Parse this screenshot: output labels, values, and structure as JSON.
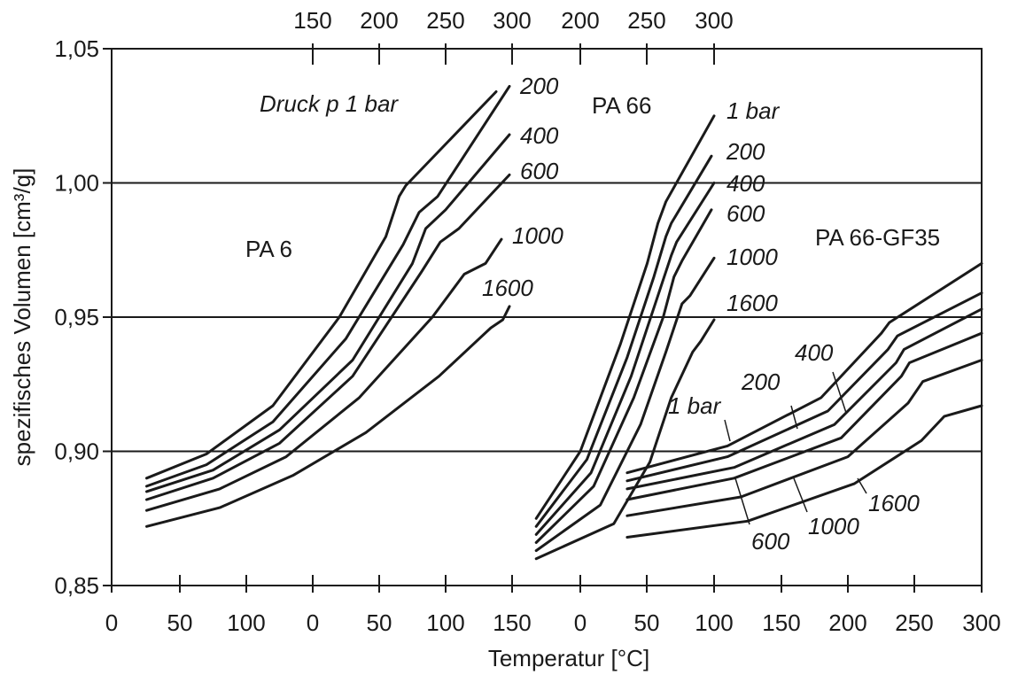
{
  "chart_data": {
    "type": "line",
    "xlabel": "Temperatur [°C]",
    "ylabel": "spezifisches Volumen [cm³/g]",
    "ylim": [
      0.85,
      1.05
    ],
    "yticks": [
      "0,85",
      "0,90",
      "0,95",
      "1,00",
      "1,05"
    ],
    "grid": "horizontal at 0,90 / 0,95 / 1,00",
    "x_axes": {
      "bottom": [
        "0",
        "50",
        "100",
        "150",
        "0",
        "50",
        "100",
        "150",
        "0",
        "50",
        "100",
        "150",
        "200",
        "250",
        "300"
      ],
      "top": [
        "150",
        "200",
        "250",
        "300",
        "200",
        "250",
        "300"
      ]
    },
    "panels": [
      {
        "name": "PA 6",
        "pressure_annotation": "Druck p 1 bar",
        "series": [
          {
            "name": "1 bar",
            "points": [
              [
                25,
                0.89
              ],
              [
                70,
                0.899
              ],
              [
                120,
                0.917
              ],
              [
                170,
                0.95
              ],
              [
                205,
                0.98
              ],
              [
                215,
                0.995
              ],
              [
                220,
                0.999
              ],
              [
                288,
                1.034
              ]
            ]
          },
          {
            "name": "200",
            "points": [
              [
                25,
                0.887
              ],
              [
                70,
                0.895
              ],
              [
                120,
                0.911
              ],
              [
                175,
                0.942
              ],
              [
                218,
                0.977
              ],
              [
                230,
                0.989
              ],
              [
                244,
                0.995
              ],
              [
                298,
                1.036
              ]
            ]
          },
          {
            "name": "400",
            "points": [
              [
                25,
                0.885
              ],
              [
                75,
                0.893
              ],
              [
                125,
                0.908
              ],
              [
                180,
                0.934
              ],
              [
                225,
                0.97
              ],
              [
                235,
                0.983
              ],
              [
                250,
                0.99
              ],
              [
                298,
                1.018
              ]
            ]
          },
          {
            "name": "600",
            "points": [
              [
                25,
                0.882
              ],
              [
                75,
                0.89
              ],
              [
                125,
                0.903
              ],
              [
                180,
                0.928
              ],
              [
                232,
                0.967
              ],
              [
                246,
                0.978
              ],
              [
                260,
                0.983
              ],
              [
                298,
                1.003
              ]
            ]
          },
          {
            "name": "1000",
            "points": [
              [
                25,
                0.878
              ],
              [
                80,
                0.886
              ],
              [
                130,
                0.898
              ],
              [
                185,
                0.92
              ],
              [
                240,
                0.95
              ],
              [
                264,
                0.966
              ],
              [
                280,
                0.97
              ],
              [
                292,
                0.979
              ]
            ]
          },
          {
            "name": "1600",
            "points": [
              [
                25,
                0.872
              ],
              [
                80,
                0.879
              ],
              [
                135,
                0.891
              ],
              [
                190,
                0.907
              ],
              [
                245,
                0.928
              ],
              [
                284,
                0.946
              ],
              [
                293,
                0.949
              ],
              [
                298,
                0.954
              ]
            ]
          }
        ],
        "labels": [
          "200",
          "400",
          "600",
          "1000",
          "1600"
        ]
      },
      {
        "name": "PA 66",
        "series": [
          {
            "name": "1 bar",
            "points": [
              [
                167,
                0.875
              ],
              [
                200,
                0.9
              ],
              [
                230,
                0.94
              ],
              [
                250,
                0.97
              ],
              [
                258,
                0.985
              ],
              [
                264,
                0.993
              ],
              [
                300,
                1.025
              ]
            ]
          },
          {
            "name": "200",
            "points": [
              [
                167,
                0.872
              ],
              [
                205,
                0.897
              ],
              [
                235,
                0.935
              ],
              [
                255,
                0.965
              ],
              [
                264,
                0.98
              ],
              [
                268,
                0.985
              ],
              [
                298,
                1.01
              ]
            ]
          },
          {
            "name": "400",
            "points": [
              [
                167,
                0.869
              ],
              [
                208,
                0.892
              ],
              [
                238,
                0.928
              ],
              [
                258,
                0.958
              ],
              [
                268,
                0.973
              ],
              [
                272,
                0.978
              ],
              [
                300,
                1.0
              ]
            ]
          },
          {
            "name": "600",
            "points": [
              [
                167,
                0.866
              ],
              [
                210,
                0.887
              ],
              [
                240,
                0.92
              ],
              [
                262,
                0.95
              ],
              [
                270,
                0.965
              ],
              [
                276,
                0.971
              ],
              [
                298,
                0.99
              ]
            ]
          },
          {
            "name": "1000",
            "points": [
              [
                167,
                0.863
              ],
              [
                215,
                0.88
              ],
              [
                245,
                0.91
              ],
              [
                264,
                0.937
              ],
              [
                276,
                0.955
              ],
              [
                282,
                0.958
              ],
              [
                300,
                0.972
              ]
            ]
          },
          {
            "name": "1600",
            "points": [
              [
                167,
                0.86
              ],
              [
                225,
                0.873
              ],
              [
                252,
                0.896
              ],
              [
                268,
                0.92
              ],
              [
                284,
                0.937
              ],
              [
                290,
                0.941
              ],
              [
                300,
                0.949
              ]
            ]
          }
        ],
        "labels": [
          "1 bar",
          "200",
          "400",
          "600",
          "1000",
          "1600"
        ]
      },
      {
        "name": "PA 66-GF35",
        "series": [
          {
            "name": "1 bar",
            "points": [
              [
                35,
                0.892
              ],
              [
                110,
                0.902
              ],
              [
                180,
                0.92
              ],
              [
                225,
                0.944
              ],
              [
                231,
                0.948
              ],
              [
                300,
                0.97
              ]
            ]
          },
          {
            "name": "200",
            "points": [
              [
                35,
                0.889
              ],
              [
                110,
                0.898
              ],
              [
                185,
                0.915
              ],
              [
                230,
                0.938
              ],
              [
                237,
                0.943
              ],
              [
                300,
                0.959
              ]
            ]
          },
          {
            "name": "400",
            "points": [
              [
                35,
                0.886
              ],
              [
                115,
                0.894
              ],
              [
                190,
                0.91
              ],
              [
                236,
                0.933
              ],
              [
                242,
                0.938
              ],
              [
                300,
                0.953
              ]
            ]
          },
          {
            "name": "600",
            "points": [
              [
                35,
                0.882
              ],
              [
                115,
                0.89
              ],
              [
                195,
                0.905
              ],
              [
                240,
                0.928
              ],
              [
                246,
                0.933
              ],
              [
                300,
                0.944
              ]
            ]
          },
          {
            "name": "1000",
            "points": [
              [
                35,
                0.876
              ],
              [
                120,
                0.883
              ],
              [
                200,
                0.898
              ],
              [
                245,
                0.918
              ],
              [
                256,
                0.926
              ],
              [
                300,
                0.934
              ]
            ]
          },
          {
            "name": "1600",
            "points": [
              [
                35,
                0.868
              ],
              [
                125,
                0.874
              ],
              [
                205,
                0.888
              ],
              [
                255,
                0.904
              ],
              [
                272,
                0.913
              ],
              [
                300,
                0.917
              ]
            ]
          }
        ],
        "labels": [
          "1 bar",
          "200",
          "400",
          "600",
          "1000",
          "1600"
        ]
      }
    ]
  }
}
